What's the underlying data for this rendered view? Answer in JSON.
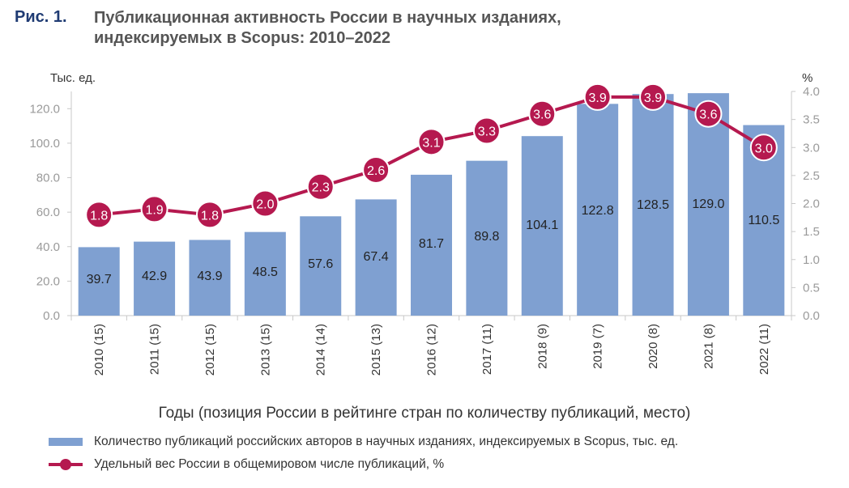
{
  "figure": {
    "number": "Рис. 1.",
    "title_line1": "Публикационная активность России в научных изданиях,",
    "title_line2": "индексируемых в Scopus: 2010–2022"
  },
  "chart_data": {
    "type": "bar",
    "categories": [
      "2010 (15)",
      "2011 (15)",
      "2012 (15)",
      "2013 (15)",
      "2014 (14)",
      "2015 (13)",
      "2016 (12)",
      "2017 (11)",
      "2018 (9)",
      "2019 (7)",
      "2020 (8)",
      "2021 (8)",
      "2022 (11)"
    ],
    "series": [
      {
        "name": "Количество публикаций российских авторов в научных изданиях, индексируемых в Scopus, тыс. ед.",
        "type": "bar",
        "axis": "left",
        "color": "#7fa0d1",
        "values": [
          39.7,
          42.9,
          43.9,
          48.5,
          57.6,
          67.4,
          81.7,
          89.8,
          104.1,
          122.8,
          128.5,
          129.0,
          110.5
        ],
        "labels": [
          "39.7",
          "42.9",
          "43.9",
          "48.5",
          "57.6",
          "67.4",
          "81.7",
          "89.8",
          "104.1",
          "122.8",
          "128.5",
          "129.0",
          "110.5"
        ]
      },
      {
        "name": "Удельный вес России в общемировом числе публикаций, %",
        "type": "line",
        "axis": "right",
        "color": "#b5194f",
        "values": [
          1.8,
          1.9,
          1.8,
          2.0,
          2.3,
          2.6,
          3.1,
          3.3,
          3.6,
          3.9,
          3.9,
          3.6,
          3.0
        ],
        "labels": [
          "1.8",
          "1.9",
          "1.8",
          "2.0",
          "2.3",
          "2.6",
          "3.1",
          "3.3",
          "3.6",
          "3.9",
          "3.9",
          "3.6",
          "3.0"
        ]
      }
    ],
    "y_left": {
      "label": "Тыс. ед.",
      "lim": [
        0,
        130
      ],
      "ticks": [
        0,
        20,
        40,
        60,
        80,
        100,
        120
      ],
      "tick_labels": [
        "0.0",
        "20.0",
        "40.0",
        "60.0",
        "80.0",
        "100.0",
        "120.0"
      ]
    },
    "y_right": {
      "label": "%",
      "lim": [
        0,
        4.0
      ],
      "ticks": [
        0,
        0.5,
        1.0,
        1.5,
        2.0,
        2.5,
        3.0,
        3.5,
        4.0
      ],
      "tick_labels": [
        "0.0",
        "0.5",
        "1.0",
        "1.5",
        "2.0",
        "2.5",
        "3.0",
        "3.5",
        "4.0"
      ]
    },
    "xlabel": "Годы (позиция России в рейтинге стран по количеству публикаций,  место)",
    "grid": false,
    "legend_position": "bottom"
  }
}
